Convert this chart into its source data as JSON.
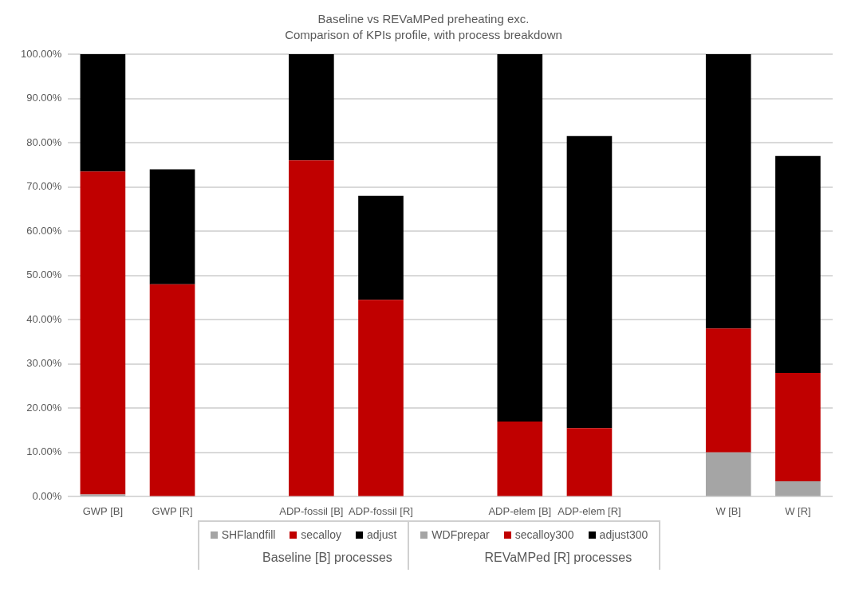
{
  "chart_data": {
    "type": "bar",
    "stacked": true,
    "title": "Baseline vs REVaMPed preheating exc.",
    "subtitle": "Comparison of KPIs profile, with process breakdown",
    "categories": [
      "GWP [B]",
      "GWP [R]",
      null,
      "ADP-fossil [B]",
      "ADP-fossil [R]",
      null,
      "ADP-elem [B]",
      "ADP-elem [R]",
      null,
      "W [B]",
      "W [R]"
    ],
    "series": [
      {
        "name": "SHFlandfill",
        "color": "#a5a5a5",
        "values": [
          0.5,
          null,
          null,
          0,
          null,
          null,
          0,
          null,
          null,
          10,
          null
        ]
      },
      {
        "name": "secalloy",
        "color": "#c00000",
        "values": [
          73,
          null,
          null,
          76,
          null,
          null,
          17,
          null,
          null,
          28,
          null
        ]
      },
      {
        "name": "adjust",
        "color": "#000000",
        "values": [
          26.5,
          null,
          null,
          24,
          null,
          null,
          83,
          null,
          null,
          62,
          null
        ]
      },
      {
        "name": "WDFprepar",
        "color": "#a5a5a5",
        "values": [
          null,
          0,
          null,
          null,
          0,
          null,
          null,
          0,
          null,
          null,
          3.5
        ]
      },
      {
        "name": "secalloy300",
        "color": "#c00000",
        "values": [
          null,
          48,
          null,
          null,
          44.5,
          null,
          null,
          15.5,
          null,
          null,
          24.5
        ]
      },
      {
        "name": "adjust300",
        "color": "#000000",
        "values": [
          null,
          26,
          null,
          null,
          23.5,
          null,
          null,
          66,
          null,
          null,
          49
        ]
      }
    ],
    "ylim": [
      0,
      100
    ],
    "yticks": [
      {
        "value": 0,
        "label": "0.00%"
      },
      {
        "value": 10,
        "label": "10.00%"
      },
      {
        "value": 20,
        "label": "20.00%"
      },
      {
        "value": 30,
        "label": "30.00%"
      },
      {
        "value": 40,
        "label": "40.00%"
      },
      {
        "value": 50,
        "label": "50.00%"
      },
      {
        "value": 60,
        "label": "60.00%"
      },
      {
        "value": 70,
        "label": "70.00%"
      },
      {
        "value": 80,
        "label": "80.00%"
      },
      {
        "value": 90,
        "label": "90.00%"
      },
      {
        "value": 100,
        "label": "100.00%"
      }
    ],
    "grid": "y",
    "legend": "bottom",
    "annotations": [
      "Baseline [B] processes",
      "REVaMPed [R] processes"
    ]
  }
}
